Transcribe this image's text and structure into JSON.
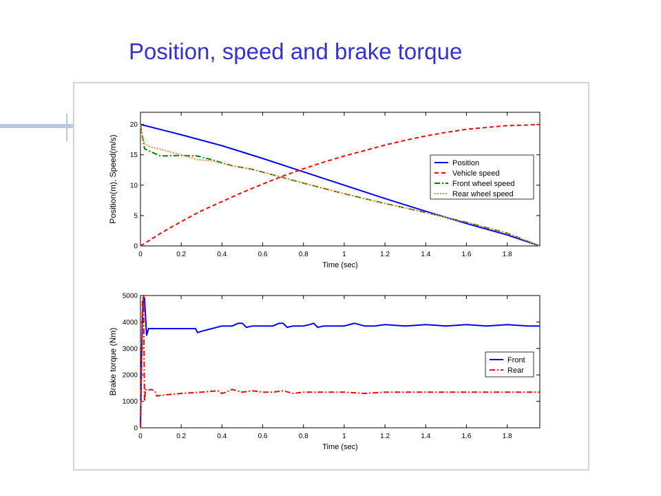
{
  "slide": {
    "title": "Position, speed and brake torque"
  },
  "colors": {
    "title": "#3333cc",
    "frame_border": "#d3d3d3",
    "background_bar": "#b9c8de",
    "position": "#0000ff",
    "vehicle_speed": "#ff0000",
    "front_wheel_speed": "#008000",
    "rear_wheel_speed": "#ff8040",
    "front_torque": "#0000ff",
    "rear_torque": "#ff0000"
  },
  "chart_data": [
    {
      "type": "line",
      "title": "",
      "xlabel": "Time (sec)",
      "ylabel": "Position(m), Speed(m/s)",
      "xlim": [
        0,
        1.96
      ],
      "ylim": [
        0,
        22
      ],
      "xticks": [
        0,
        0.2,
        0.4,
        0.6,
        0.8,
        1,
        1.2,
        1.4,
        1.6,
        1.8
      ],
      "xtick_labels": [
        "0",
        "0.2",
        "0.4",
        "0.6",
        "0.8",
        "1",
        "1.2",
        "1.4",
        "1.6",
        "1.8"
      ],
      "yticks": [
        0,
        5,
        10,
        15,
        20
      ],
      "ytick_labels": [
        "0",
        "5",
        "10",
        "15",
        "20"
      ],
      "grid": false,
      "legend_position": "right",
      "series": [
        {
          "name": "Position",
          "style": "solid",
          "x": [
            0,
            0.2,
            0.4,
            0.6,
            0.8,
            1.0,
            1.2,
            1.4,
            1.6,
            1.8,
            1.96
          ],
          "y": [
            20,
            18.3,
            16.5,
            14.4,
            12.2,
            10.0,
            7.8,
            5.7,
            3.7,
            1.8,
            0
          ]
        },
        {
          "name": "Vehicle speed",
          "style": "dashed",
          "x": [
            0,
            0.1,
            0.2,
            0.3,
            0.4,
            0.5,
            0.6,
            0.7,
            0.8,
            0.9,
            1.0,
            1.1,
            1.2,
            1.3,
            1.4,
            1.5,
            1.6,
            1.7,
            1.8,
            1.9,
            1.96
          ],
          "y": [
            0,
            2.1,
            4.0,
            5.8,
            7.3,
            8.8,
            10.2,
            11.5,
            12.7,
            13.8,
            14.8,
            15.7,
            16.6,
            17.4,
            18.1,
            18.7,
            19.2,
            19.5,
            19.8,
            19.9,
            20.0
          ]
        },
        {
          "name": "Front wheel speed",
          "style": "dashdot",
          "x": [
            0,
            0.01,
            0.02,
            0.05,
            0.1,
            0.2,
            0.28,
            0.35,
            0.45,
            0.55,
            0.65,
            0.75,
            0.85,
            1.0,
            1.2,
            1.4,
            1.6,
            1.8,
            1.96
          ],
          "y": [
            20,
            18,
            16,
            15.5,
            14.8,
            14.9,
            14.8,
            14.2,
            13.2,
            12.6,
            11.7,
            10.8,
            9.9,
            8.6,
            7.0,
            5.5,
            3.9,
            2.1,
            0
          ]
        },
        {
          "name": "Rear wheel speed",
          "style": "dotted",
          "x": [
            0,
            0.01,
            0.02,
            0.05,
            0.1,
            0.2,
            0.28,
            0.35,
            0.45,
            0.55,
            0.65,
            0.75,
            0.85,
            1.0,
            1.2,
            1.4,
            1.6,
            1.8,
            1.96
          ],
          "y": [
            20,
            18,
            16.8,
            16.3,
            15.9,
            15.0,
            14.2,
            14.0,
            13.2,
            12.6,
            11.7,
            10.8,
            9.9,
            8.6,
            7.0,
            5.5,
            3.9,
            2.1,
            0
          ]
        }
      ]
    },
    {
      "type": "line",
      "title": "",
      "xlabel": "Time (sec)",
      "ylabel": "Brake torque (Nm)",
      "xlim": [
        0,
        1.96
      ],
      "ylim": [
        0,
        5000
      ],
      "xticks": [
        0,
        0.2,
        0.4,
        0.6,
        0.8,
        1,
        1.2,
        1.4,
        1.6,
        1.8
      ],
      "xtick_labels": [
        "0",
        "0.2",
        "0.4",
        "0.6",
        "0.8",
        "1",
        "1.2",
        "1.4",
        "1.6",
        "1.8"
      ],
      "yticks": [
        0,
        1000,
        2000,
        3000,
        4000,
        5000
      ],
      "ytick_labels": [
        "0",
        "1000",
        "2000",
        "3000",
        "4000",
        "5000"
      ],
      "grid": false,
      "legend_position": "right",
      "series": [
        {
          "name": "Front",
          "style": "solid",
          "x": [
            0,
            0.005,
            0.01,
            0.015,
            0.02,
            0.025,
            0.03,
            0.04,
            0.1,
            0.2,
            0.27,
            0.28,
            0.3,
            0.35,
            0.4,
            0.45,
            0.48,
            0.5,
            0.52,
            0.55,
            0.6,
            0.65,
            0.68,
            0.7,
            0.72,
            0.75,
            0.8,
            0.83,
            0.85,
            0.87,
            0.9,
            0.95,
            1.0,
            1.05,
            1.1,
            1.15,
            1.2,
            1.3,
            1.4,
            1.5,
            1.6,
            1.7,
            1.8,
            1.9,
            1.96
          ],
          "y": [
            0,
            2500,
            4300,
            4950,
            4900,
            4200,
            3500,
            3750,
            3750,
            3750,
            3750,
            3600,
            3650,
            3750,
            3850,
            3850,
            3950,
            3950,
            3800,
            3850,
            3850,
            3850,
            3950,
            3950,
            3800,
            3850,
            3850,
            3900,
            3950,
            3800,
            3850,
            3850,
            3850,
            3950,
            3850,
            3850,
            3900,
            3850,
            3900,
            3850,
            3900,
            3850,
            3900,
            3850,
            3850
          ]
        },
        {
          "name": "Rear",
          "style": "dashdot",
          "x": [
            0,
            0.005,
            0.01,
            0.015,
            0.02,
            0.025,
            0.03,
            0.05,
            0.07,
            0.08,
            0.1,
            0.2,
            0.3,
            0.38,
            0.4,
            0.42,
            0.45,
            0.5,
            0.55,
            0.6,
            0.65,
            0.7,
            0.75,
            0.8,
            0.85,
            0.9,
            1.0,
            1.1,
            1.2,
            1.3,
            1.4,
            1.5,
            1.6,
            1.7,
            1.8,
            1.9,
            1.96
          ],
          "y": [
            0,
            2500,
            4800,
            5000,
            1000,
            1450,
            1400,
            1450,
            1400,
            1200,
            1230,
            1300,
            1350,
            1400,
            1300,
            1350,
            1450,
            1350,
            1400,
            1350,
            1350,
            1400,
            1300,
            1350,
            1350,
            1350,
            1350,
            1300,
            1350,
            1350,
            1350,
            1350,
            1350,
            1350,
            1350,
            1350,
            1350
          ]
        }
      ]
    }
  ]
}
